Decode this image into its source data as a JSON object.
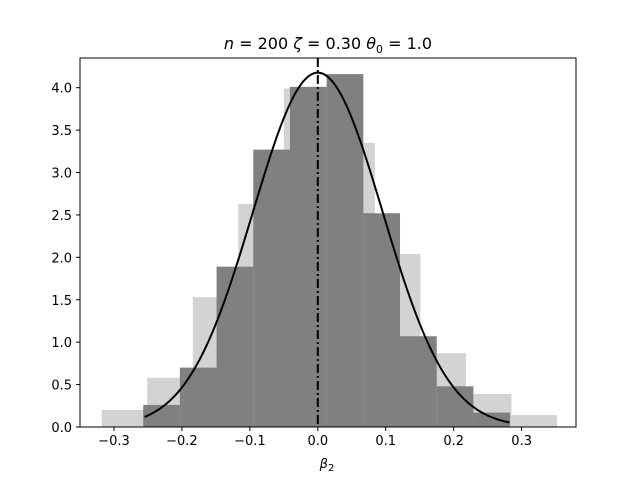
{
  "chart_data": {
    "type": "bar",
    "title": {
      "n_part": "n",
      "n_value": " = 200 ",
      "zeta_part": "ζ",
      "zeta_value": " = 0.30 ",
      "theta_part": "θ",
      "theta_sub": "0",
      "theta_value": " = 1.0"
    },
    "xlabel": {
      "symbol": "β",
      "sub": "2"
    },
    "xlim": [
      -0.35,
      0.38
    ],
    "ylim": [
      0,
      4.35
    ],
    "xticks": [
      -0.3,
      -0.2,
      -0.1,
      0.0,
      0.1,
      0.2,
      0.3
    ],
    "xtick_labels": [
      "−0.3",
      "−0.2",
      "−0.1",
      "0.0",
      "0.1",
      "0.2",
      "0.3"
    ],
    "yticks": [
      0.0,
      0.5,
      1.0,
      1.5,
      2.0,
      2.5,
      3.0,
      3.5,
      4.0
    ],
    "ytick_labels": [
      "0.0",
      "0.5",
      "1.0",
      "1.5",
      "2.0",
      "2.5",
      "3.0",
      "3.5",
      "4.0"
    ],
    "series": [
      {
        "color": "#d3d3d3",
        "bins": [
          {
            "x0": -0.318,
            "x1": -0.251,
            "value": 0.2
          },
          {
            "x0": -0.251,
            "x1": -0.184,
            "value": 0.58
          },
          {
            "x0": -0.184,
            "x1": -0.117,
            "value": 1.53
          },
          {
            "x0": -0.117,
            "x1": -0.05,
            "value": 2.63
          },
          {
            "x0": -0.05,
            "x1": 0.017,
            "value": 3.99
          },
          {
            "x0": 0.017,
            "x1": 0.084,
            "value": 3.35
          },
          {
            "x0": 0.084,
            "x1": 0.151,
            "value": 2.04
          },
          {
            "x0": 0.151,
            "x1": 0.218,
            "value": 0.87
          },
          {
            "x0": 0.218,
            "x1": 0.285,
            "value": 0.39
          },
          {
            "x0": 0.285,
            "x1": 0.352,
            "value": 0.14
          }
        ]
      },
      {
        "color": "#808080",
        "bins": [
          {
            "x0": -0.257,
            "x1": -0.203,
            "value": 0.26
          },
          {
            "x0": -0.203,
            "x1": -0.149,
            "value": 0.7
          },
          {
            "x0": -0.149,
            "x1": -0.095,
            "value": 1.89
          },
          {
            "x0": -0.095,
            "x1": -0.041,
            "value": 3.27
          },
          {
            "x0": -0.041,
            "x1": 0.013,
            "value": 4.01
          },
          {
            "x0": 0.013,
            "x1": 0.067,
            "value": 4.16
          },
          {
            "x0": 0.067,
            "x1": 0.121,
            "value": 2.52
          },
          {
            "x0": 0.121,
            "x1": 0.175,
            "value": 1.07
          },
          {
            "x0": 0.175,
            "x1": 0.229,
            "value": 0.48
          },
          {
            "x0": 0.229,
            "x1": 0.283,
            "value": 0.17
          }
        ]
      }
    ],
    "density_curve": {
      "color": "#000000",
      "type": "normal",
      "mean": 0.0,
      "sd": 0.0955,
      "x_range": [
        -0.255,
        0.282
      ]
    },
    "vertical_line": {
      "x": 0.0,
      "style": "dash-dot",
      "color": "#000000"
    }
  }
}
